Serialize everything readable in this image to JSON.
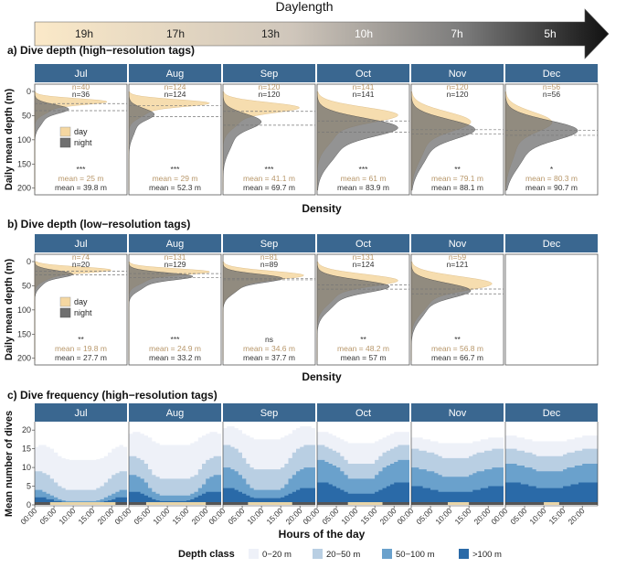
{
  "header": {
    "label": "Daylength",
    "hours": [
      "19h",
      "17h",
      "13h",
      "10h",
      "7h",
      "5h"
    ]
  },
  "months": [
    "Jul",
    "Aug",
    "Sep",
    "Oct",
    "Nov",
    "Dec"
  ],
  "colors": {
    "day": "#f5d7a1",
    "night": "#6f6f6f",
    "strip": "#3a6790",
    "day_text": "#b8976a",
    "night_text": "#333333",
    "d0_20": "#eef1f8",
    "d20_50": "#b9cfe3",
    "d50_100": "#6aa1cc",
    "d100": "#2a6aa8"
  },
  "legend_labels": {
    "day": "day",
    "night": "night"
  },
  "chart_data": [
    {
      "type": "area",
      "title": "a) Dive depth (high−resolution tags)",
      "xlabel": "Density",
      "ylabel": "Daily mean depth (m)",
      "yticks": [
        "0",
        "50",
        "100",
        "150",
        "200"
      ],
      "ylim": [
        0,
        210
      ],
      "panels": [
        {
          "month": "Jul",
          "n_day": "n=40",
          "n_night": "n=36",
          "sig": "***",
          "mean_day_label": "mean = 25 m",
          "mean_night_label": "mean = 39.8 m",
          "mean_day": 25,
          "mean_night": 39.8
        },
        {
          "month": "Aug",
          "n_day": "n=124",
          "n_night": "n=124",
          "sig": "***",
          "mean_day_label": "mean = 29 m",
          "mean_night_label": "mean = 52.3 m",
          "mean_day": 29,
          "mean_night": 52.3
        },
        {
          "month": "Sep",
          "n_day": "n=120",
          "n_night": "n=120",
          "sig": "***",
          "mean_day_label": "mean = 41.1 m",
          "mean_night_label": "mean = 69.7 m",
          "mean_day": 41.1,
          "mean_night": 69.7
        },
        {
          "month": "Oct",
          "n_day": "n=141",
          "n_night": "n=141",
          "sig": "***",
          "mean_day_label": "mean = 61 m",
          "mean_night_label": "mean = 83.9 m",
          "mean_day": 61,
          "mean_night": 83.9
        },
        {
          "month": "Nov",
          "n_day": "n=120",
          "n_night": "n=120",
          "sig": "**",
          "mean_day_label": "mean = 79.1 m",
          "mean_night_label": "mean = 88.1 m",
          "mean_day": 79.1,
          "mean_night": 88.1
        },
        {
          "month": "Dec",
          "n_day": "n=56",
          "n_night": "n=56",
          "sig": "*",
          "mean_day_label": "mean = 80.3 m",
          "mean_night_label": "mean = 90.7 m",
          "mean_day": 80.3,
          "mean_night": 90.7
        }
      ]
    },
    {
      "type": "area",
      "title": "b) Dive depth (low−resolution tags)",
      "xlabel": "Density",
      "ylabel": "Daily mean depth (m)",
      "yticks": [
        "0",
        "50",
        "100",
        "150",
        "200"
      ],
      "ylim": [
        0,
        210
      ],
      "panels": [
        {
          "month": "Jul",
          "n_day": "n=74",
          "n_night": "n=20",
          "sig": "**",
          "mean_day_label": "mean = 19.8 m",
          "mean_night_label": "mean = 27.7 m",
          "mean_day": 19.8,
          "mean_night": 27.7
        },
        {
          "month": "Aug",
          "n_day": "n=131",
          "n_night": "n=129",
          "sig": "***",
          "mean_day_label": "mean = 24.9 m",
          "mean_night_label": "mean = 33.2 m",
          "mean_day": 24.9,
          "mean_night": 33.2
        },
        {
          "month": "Sep",
          "n_day": "n=81",
          "n_night": "n=89",
          "sig": "ns",
          "mean_day_label": "mean = 34.6 m",
          "mean_night_label": "mean = 37.7 m",
          "mean_day": 34.6,
          "mean_night": 37.7
        },
        {
          "month": "Oct",
          "n_day": "n=131",
          "n_night": "n=124",
          "sig": "**",
          "mean_day_label": "mean = 48.2 m",
          "mean_night_label": "mean = 57 m",
          "mean_day": 48.2,
          "mean_night": 57
        },
        {
          "month": "Nov",
          "n_day": "n=59",
          "n_night": "n=121",
          "sig": "**",
          "mean_day_label": "mean = 56.8 m",
          "mean_night_label": "mean = 66.7 m",
          "mean_day": 56.8,
          "mean_night": 66.7
        },
        {
          "month": "Dec",
          "empty": true
        }
      ]
    },
    {
      "type": "area",
      "title": "c) Dive frequency (high−resolution tags)",
      "xlabel": "Hours of the day",
      "ylabel": "Mean number of dives",
      "yticks": [
        "0",
        "5",
        "10",
        "15",
        "20"
      ],
      "ylim": [
        0,
        22
      ],
      "xticks": [
        "00:00",
        "05:00",
        "10:00",
        "15:00",
        "20:00"
      ],
      "legend_title": "Depth class",
      "series_names": [
        "0−20 m",
        "20−50 m",
        "50−100 m",
        ">100 m"
      ],
      "panels": [
        {
          "month": "Jul",
          "d100": [
            2,
            2,
            2,
            1.5,
            1.5,
            1,
            1,
            0.8,
            0.6,
            0.6,
            0.5,
            0.5,
            0.5,
            0.5,
            0.5,
            0.6,
            0.6,
            0.8,
            1,
            1.2,
            1.5,
            2,
            2,
            2
          ],
          "d50": [
            4,
            4,
            3.5,
            3,
            2.5,
            2,
            1.5,
            1.2,
            1,
            1,
            1,
            1,
            1,
            1,
            1,
            1,
            1.2,
            1.5,
            2,
            2.5,
            3,
            3.5,
            4,
            4
          ],
          "d20": [
            9,
            9,
            8.5,
            8,
            7,
            6,
            5,
            4.5,
            4,
            4,
            4,
            4,
            4,
            4,
            4,
            4,
            4.5,
            5,
            6,
            7,
            8,
            8.5,
            9,
            9
          ],
          "total": [
            15.5,
            16,
            16,
            15.5,
            15,
            14,
            13,
            12.5,
            12.2,
            12,
            12,
            12,
            12,
            12,
            12,
            12,
            12.2,
            12.5,
            13,
            14,
            15,
            15.5,
            16,
            15.5
          ],
          "day_hours": [
            4,
            21
          ]
        },
        {
          "month": "Aug",
          "d100": [
            3.5,
            3.5,
            3.5,
            3,
            2.5,
            2,
            1.5,
            1.2,
            1,
            1,
            1,
            1,
            1,
            1,
            1,
            1.2,
            1.5,
            2,
            2.5,
            3,
            3.5,
            3.5,
            3.5,
            3.5
          ],
          "d50": [
            8,
            8,
            7.5,
            7,
            6,
            4.5,
            3.5,
            3,
            2.5,
            2.5,
            2.5,
            2.5,
            2.5,
            2.5,
            2.5,
            2.5,
            3,
            3.5,
            4.5,
            5.5,
            7,
            7.5,
            8,
            8
          ],
          "d20": [
            13,
            13,
            12.5,
            12,
            11,
            9.5,
            8,
            7.5,
            7,
            7,
            7,
            7,
            7,
            7,
            7,
            7,
            7.5,
            8,
            9.5,
            11,
            12,
            12.5,
            13,
            13
          ],
          "total": [
            19,
            19.5,
            19.5,
            19,
            18.5,
            18,
            17,
            16.5,
            16,
            16,
            16,
            16,
            16,
            16,
            16,
            16,
            16.5,
            17,
            18,
            18.5,
            19,
            19.5,
            19.5,
            19
          ],
          "day_hours": [
            4.5,
            20
          ]
        },
        {
          "month": "Sep",
          "d100": [
            4.5,
            4.5,
            4.5,
            4,
            3.5,
            3,
            2.5,
            2,
            1.8,
            1.8,
            1.8,
            1.8,
            1.8,
            1.8,
            1.8,
            2,
            2.5,
            3,
            3.5,
            4,
            4.5,
            4.5,
            4.5,
            4.5
          ],
          "d50": [
            10,
            10,
            9.5,
            9,
            8,
            7,
            5.5,
            4.5,
            4,
            4,
            4,
            4,
            4,
            4,
            4,
            4.5,
            5.5,
            7,
            8,
            9,
            9.5,
            10,
            10,
            10
          ],
          "d20": [
            16,
            16,
            15.5,
            15,
            14,
            12.5,
            11,
            10,
            9.5,
            9.5,
            9.5,
            9.5,
            9.5,
            9.5,
            9.5,
            10,
            11,
            12.5,
            14,
            15,
            15.5,
            16,
            16,
            16
          ],
          "total": [
            20.5,
            21,
            21,
            20.5,
            20,
            19,
            18.5,
            18,
            17.5,
            17.5,
            17.5,
            17.5,
            17.5,
            17.5,
            17.5,
            18,
            18.5,
            19,
            20,
            20.5,
            21,
            21,
            21,
            20.5
          ],
          "day_hours": [
            6.5,
            18
          ]
        },
        {
          "month": "Oct",
          "d100": [
            6,
            6,
            6,
            5.5,
            5,
            4.5,
            4,
            3.5,
            3,
            3,
            3,
            3,
            3,
            3,
            3,
            3.5,
            4,
            4.5,
            5,
            5.5,
            6,
            6,
            6,
            6
          ],
          "d50": [
            12,
            12,
            11.5,
            11,
            10.5,
            10,
            9,
            8,
            7,
            7,
            7,
            7,
            7,
            7,
            7,
            8,
            9,
            10,
            10.5,
            11,
            11.5,
            12,
            12,
            12
          ],
          "d20": [
            16,
            16,
            15.5,
            15,
            14.5,
            14,
            13,
            12,
            11,
            11,
            11,
            11,
            11,
            11,
            11,
            12,
            13,
            14,
            14.5,
            15,
            15.5,
            16,
            16,
            16
          ],
          "total": [
            19.5,
            19.5,
            19.5,
            19,
            18.5,
            18,
            17.5,
            17,
            16.5,
            16.5,
            16.5,
            16.5,
            16.5,
            16.5,
            16.5,
            17,
            17.5,
            18,
            18.5,
            19,
            19.5,
            19.5,
            19.5,
            19.5
          ],
          "day_hours": [
            8,
            17
          ]
        },
        {
          "month": "Nov",
          "d100": [
            5,
            5,
            5,
            4.5,
            4.5,
            4,
            4,
            3.5,
            3.5,
            3.5,
            3.5,
            3.5,
            3.5,
            3.5,
            3.5,
            3.5,
            4,
            4,
            4.5,
            4.5,
            5,
            5,
            5,
            5
          ],
          "d50": [
            10,
            10,
            9.5,
            9.5,
            9,
            9,
            8.5,
            8,
            7.5,
            7.5,
            7.5,
            7.5,
            7.5,
            7.5,
            7.5,
            8,
            8.5,
            9,
            9,
            9.5,
            9.5,
            10,
            10,
            10
          ],
          "d20": [
            15,
            15,
            14.5,
            14.5,
            14,
            14,
            13.5,
            13,
            12.5,
            12.5,
            12.5,
            12.5,
            12.5,
            12.5,
            12.5,
            13,
            13.5,
            14,
            14,
            14.5,
            14.5,
            15,
            15,
            15
          ],
          "total": [
            18,
            18,
            18,
            17.5,
            17.5,
            17,
            17,
            16.5,
            16.5,
            16.5,
            16.5,
            16.5,
            16.5,
            16.5,
            16.5,
            16.5,
            17,
            17,
            17.5,
            17.5,
            18,
            18,
            18,
            18
          ],
          "day_hours": [
            9.5,
            15
          ]
        },
        {
          "month": "Dec",
          "d100": [
            6,
            6,
            6,
            6,
            5.5,
            5.5,
            5,
            5,
            4.5,
            4.5,
            4.5,
            4.5,
            4.5,
            4.5,
            4.5,
            5,
            5,
            5.5,
            5.5,
            6,
            6,
            6,
            6,
            6
          ],
          "d50": [
            11,
            11,
            11,
            10.5,
            10.5,
            10,
            10,
            9.5,
            9,
            9,
            9,
            9,
            9,
            9,
            9,
            9.5,
            10,
            10,
            10.5,
            10.5,
            11,
            11,
            11,
            11
          ],
          "d20": [
            15,
            15,
            15,
            14.5,
            14.5,
            14,
            14,
            13.5,
            13,
            13,
            13,
            13,
            13,
            13,
            13,
            13.5,
            14,
            14,
            14.5,
            14.5,
            15,
            15,
            15,
            15
          ],
          "total": [
            18.5,
            18.5,
            18.5,
            18,
            18,
            17.5,
            17.5,
            17,
            17,
            17,
            17,
            17,
            17,
            17,
            17,
            17,
            17.5,
            17.5,
            18,
            18,
            18.5,
            18.5,
            18.5,
            18.5
          ],
          "day_hours": [
            10,
            14
          ]
        }
      ]
    }
  ]
}
